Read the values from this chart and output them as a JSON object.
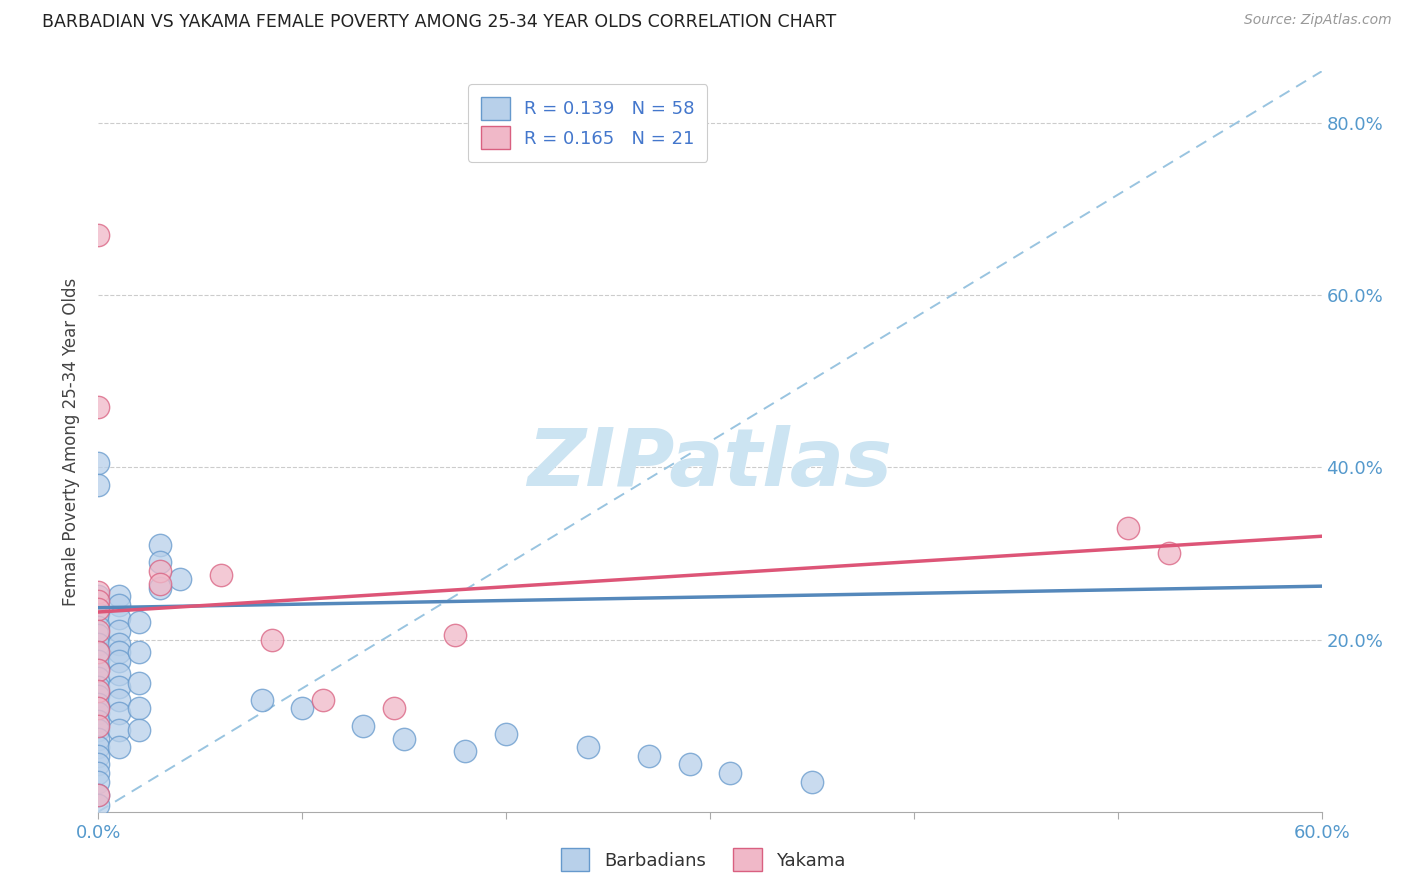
{
  "title": "BARBADIAN VS YAKAMA FEMALE POVERTY AMONG 25-34 YEAR OLDS CORRELATION CHART",
  "source": "Source: ZipAtlas.com",
  "ylabel": "Female Poverty Among 25-34 Year Olds",
  "xlim": [
    0.0,
    0.6
  ],
  "ylim": [
    0.0,
    0.86
  ],
  "x_tick_positions": [
    0.0,
    0.1,
    0.2,
    0.3,
    0.4,
    0.5,
    0.6
  ],
  "x_tick_labels": [
    "0.0%",
    "",
    "",
    "",
    "",
    "",
    "60.0%"
  ],
  "y_tick_positions": [
    0.0,
    0.2,
    0.4,
    0.6,
    0.8
  ],
  "y_tick_labels_right": [
    "",
    "20.0%",
    "40.0%",
    "60.0%",
    "80.0%"
  ],
  "legend_entry1": {
    "R": "0.139",
    "N": "58"
  },
  "legend_entry2": {
    "R": "0.165",
    "N": "21"
  },
  "barbadian_fill": "#b8d0ea",
  "barbadian_edge": "#6699cc",
  "yakama_fill": "#f0b8c8",
  "yakama_edge": "#d96080",
  "diagonal_color": "#99c4e0",
  "barbadian_trend_color": "#5588bb",
  "yakama_trend_color": "#dd5577",
  "watermark_color": "#cce4f2",
  "barbadian_points": [
    [
      0.0,
      0.25
    ],
    [
      0.0,
      0.23
    ],
    [
      0.0,
      0.215
    ],
    [
      0.0,
      0.205
    ],
    [
      0.0,
      0.195
    ],
    [
      0.0,
      0.185
    ],
    [
      0.0,
      0.175
    ],
    [
      0.0,
      0.165
    ],
    [
      0.0,
      0.155
    ],
    [
      0.0,
      0.145
    ],
    [
      0.0,
      0.135
    ],
    [
      0.0,
      0.125
    ],
    [
      0.0,
      0.115
    ],
    [
      0.0,
      0.105
    ],
    [
      0.0,
      0.095
    ],
    [
      0.0,
      0.085
    ],
    [
      0.0,
      0.075
    ],
    [
      0.0,
      0.065
    ],
    [
      0.0,
      0.055
    ],
    [
      0.0,
      0.045
    ],
    [
      0.0,
      0.035
    ],
    [
      0.0,
      0.02
    ],
    [
      0.0,
      0.008
    ],
    [
      0.01,
      0.25
    ],
    [
      0.01,
      0.24
    ],
    [
      0.01,
      0.225
    ],
    [
      0.01,
      0.21
    ],
    [
      0.01,
      0.195
    ],
    [
      0.01,
      0.185
    ],
    [
      0.01,
      0.175
    ],
    [
      0.01,
      0.16
    ],
    [
      0.01,
      0.145
    ],
    [
      0.01,
      0.13
    ],
    [
      0.01,
      0.115
    ],
    [
      0.01,
      0.095
    ],
    [
      0.01,
      0.075
    ],
    [
      0.02,
      0.22
    ],
    [
      0.02,
      0.185
    ],
    [
      0.02,
      0.15
    ],
    [
      0.02,
      0.12
    ],
    [
      0.02,
      0.095
    ],
    [
      0.03,
      0.31
    ],
    [
      0.03,
      0.29
    ],
    [
      0.03,
      0.26
    ],
    [
      0.0,
      0.405
    ],
    [
      0.0,
      0.38
    ],
    [
      0.04,
      0.27
    ],
    [
      0.08,
      0.13
    ],
    [
      0.1,
      0.12
    ],
    [
      0.13,
      0.1
    ],
    [
      0.15,
      0.085
    ],
    [
      0.18,
      0.07
    ],
    [
      0.2,
      0.09
    ],
    [
      0.24,
      0.075
    ],
    [
      0.27,
      0.065
    ],
    [
      0.29,
      0.055
    ],
    [
      0.31,
      0.045
    ],
    [
      0.35,
      0.035
    ]
  ],
  "yakama_points": [
    [
      0.0,
      0.67
    ],
    [
      0.0,
      0.47
    ],
    [
      0.0,
      0.255
    ],
    [
      0.0,
      0.245
    ],
    [
      0.0,
      0.235
    ],
    [
      0.0,
      0.21
    ],
    [
      0.0,
      0.185
    ],
    [
      0.0,
      0.165
    ],
    [
      0.0,
      0.14
    ],
    [
      0.0,
      0.12
    ],
    [
      0.0,
      0.1
    ],
    [
      0.0,
      0.02
    ],
    [
      0.03,
      0.28
    ],
    [
      0.03,
      0.265
    ],
    [
      0.06,
      0.275
    ],
    [
      0.085,
      0.2
    ],
    [
      0.11,
      0.13
    ],
    [
      0.145,
      0.12
    ],
    [
      0.175,
      0.205
    ],
    [
      0.505,
      0.33
    ],
    [
      0.525,
      0.3
    ]
  ],
  "barbadian_trend": [
    0.0,
    0.237,
    0.6,
    0.262
  ],
  "yakama_trend": [
    0.0,
    0.232,
    0.6,
    0.32
  ]
}
